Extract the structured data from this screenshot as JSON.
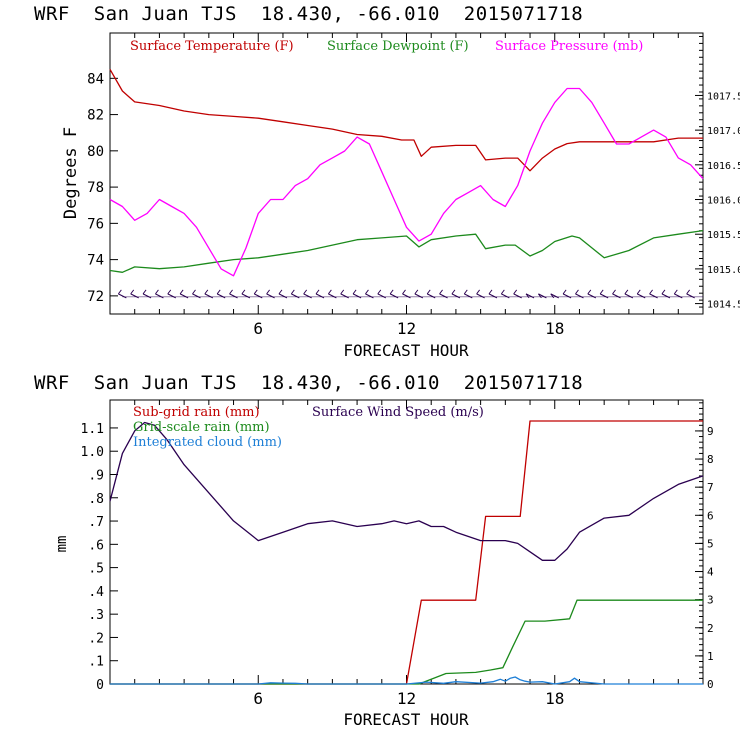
{
  "charts": [
    {
      "title": "WRF  San Juan TJS  18.430, -66.010  2015071718",
      "xlabel": "FORECAST HOUR",
      "ylabel": "Degrees F",
      "legend": [
        {
          "label": "Surface Temperature (F)",
          "color": "#c00000"
        },
        {
          "label": "Surface Dewpoint (F)",
          "color": "#1c8a1c"
        },
        {
          "label": "Surface Pressure (mb)",
          "color": "#ff00ff"
        }
      ]
    },
    {
      "title": "WRF  San Juan TJS  18.430, -66.010  2015071718",
      "xlabel": "FORECAST HOUR",
      "ylabel": "mm",
      "legend": [
        {
          "label": "Sub-grid rain (mm)",
          "color": "#c00000"
        },
        {
          "label": "Surface Wind Speed (m/s)",
          "color": "#2a0050"
        },
        {
          "label": "Grid-scale rain (mm)",
          "color": "#1c8a1c"
        },
        {
          "label": "Integrated cloud (mm)",
          "color": "#1e7fd6"
        }
      ]
    }
  ],
  "chart_data": [
    {
      "type": "line",
      "xlim": [
        0,
        24
      ],
      "ylim": [
        71,
        86.5
      ],
      "y2lim": [
        1014.35,
        1018.4
      ],
      "xticks": [
        "6",
        "12",
        "18"
      ],
      "xtick_values": [
        6,
        12,
        18
      ],
      "yticks": [
        "72",
        "74",
        "76",
        "78",
        "80",
        "82",
        "84"
      ],
      "ytick_values": [
        72,
        74,
        76,
        78,
        80,
        82,
        84
      ],
      "y2ticks": [
        "1014.5",
        "1015.0",
        "1015.5",
        "1016.0",
        "1016.5",
        "1017.0",
        "1017.5"
      ],
      "y2tick_values": [
        1014.5,
        1015.0,
        1015.5,
        1016.0,
        1016.5,
        1017.0,
        1017.5
      ],
      "series": [
        {
          "name": "Surface Temperature (F)",
          "axis": "left",
          "color": "#c00000",
          "x": [
            0,
            0.5,
            1,
            2,
            3,
            4,
            5,
            6,
            7,
            8,
            9,
            10,
            11,
            11.8,
            12.3,
            12.6,
            13,
            14,
            14.8,
            15.2,
            16,
            16.5,
            17,
            17.5,
            18,
            18.5,
            19,
            20,
            21,
            22,
            23,
            24
          ],
          "y": [
            84.5,
            83.3,
            82.7,
            82.5,
            82.2,
            82.0,
            81.9,
            81.8,
            81.6,
            81.4,
            81.2,
            80.9,
            80.8,
            80.6,
            80.6,
            79.7,
            80.2,
            80.3,
            80.3,
            79.5,
            79.6,
            79.6,
            78.9,
            79.6,
            80.1,
            80.4,
            80.5,
            80.5,
            80.5,
            80.5,
            80.7,
            80.7
          ]
        },
        {
          "name": "Surface Dewpoint (F)",
          "axis": "left",
          "color": "#1c8a1c",
          "x": [
            0,
            0.5,
            1,
            2,
            3,
            4,
            5,
            6,
            7,
            8,
            9,
            10,
            11,
            12,
            12.5,
            13,
            14,
            14.8,
            15.2,
            16,
            16.4,
            17,
            17.5,
            18,
            18.7,
            19,
            20,
            21,
            22,
            23,
            24
          ],
          "y": [
            73.4,
            73.3,
            73.6,
            73.5,
            73.6,
            73.8,
            74.0,
            74.1,
            74.3,
            74.5,
            74.8,
            75.1,
            75.2,
            75.3,
            74.7,
            75.1,
            75.3,
            75.4,
            74.6,
            74.8,
            74.8,
            74.2,
            74.5,
            75.0,
            75.3,
            75.2,
            74.1,
            74.5,
            75.2,
            75.4,
            75.6
          ]
        },
        {
          "name": "Surface Pressure (mb)",
          "axis": "right",
          "color": "#ff00ff",
          "x": [
            0,
            0.5,
            1,
            1.5,
            2,
            2.5,
            3,
            3.5,
            4,
            4.5,
            5,
            5.5,
            6,
            6.5,
            7,
            7.5,
            8,
            8.5,
            9,
            9.5,
            10,
            10.5,
            11,
            11.5,
            12,
            12.5,
            13,
            13.5,
            14,
            14.5,
            15,
            15.5,
            16,
            16.5,
            17,
            17.5,
            18,
            18.5,
            19,
            19.5,
            20,
            20.5,
            21,
            21.5,
            22,
            22.5,
            23,
            23.5,
            24
          ],
          "y": [
            1016.0,
            1015.9,
            1015.7,
            1015.8,
            1016.0,
            1015.9,
            1015.8,
            1015.6,
            1015.3,
            1015.0,
            1014.9,
            1015.3,
            1015.8,
            1016.0,
            1016.0,
            1016.2,
            1016.3,
            1016.5,
            1016.6,
            1016.7,
            1016.9,
            1016.8,
            1016.4,
            1016.0,
            1015.6,
            1015.4,
            1015.5,
            1015.8,
            1016.0,
            1016.1,
            1016.2,
            1016.0,
            1015.9,
            1016.2,
            1016.7,
            1017.1,
            1017.4,
            1017.6,
            1017.6,
            1017.4,
            1017.1,
            1016.8,
            1016.8,
            1016.9,
            1017.0,
            1016.9,
            1016.6,
            1016.5,
            1016.3
          ]
        }
      ]
    },
    {
      "type": "line",
      "xlim": [
        0,
        24
      ],
      "ylim": [
        0,
        1.22
      ],
      "y2lim": [
        0,
        10.1
      ],
      "xticks": [
        "6",
        "12",
        "18"
      ],
      "xtick_values": [
        6,
        12,
        18
      ],
      "yticks": [
        "0",
        ".1",
        ".2",
        ".3",
        ".4",
        ".5",
        ".6",
        ".7",
        ".8",
        ".9",
        "1.0",
        "1.1"
      ],
      "ytick_values": [
        0,
        0.1,
        0.2,
        0.3,
        0.4,
        0.5,
        0.6,
        0.7,
        0.8,
        0.9,
        1.0,
        1.1
      ],
      "y2ticks": [
        "0",
        "1",
        "2",
        "3",
        "4",
        "5",
        "6",
        "7",
        "8",
        "9"
      ],
      "y2tick_values": [
        0,
        1,
        2,
        3,
        4,
        5,
        6,
        7,
        8,
        9
      ],
      "series": [
        {
          "name": "Sub-grid rain (mm)",
          "axis": "left",
          "color": "#c00000",
          "x": [
            0,
            12,
            12.6,
            14.8,
            15.2,
            16.6,
            17.0,
            24
          ],
          "y": [
            0,
            0,
            0.36,
            0.36,
            0.72,
            0.72,
            1.13,
            1.13
          ]
        },
        {
          "name": "Surface Wind Speed (m/s)",
          "axis": "right",
          "color": "#2a0050",
          "x": [
            0,
            0.5,
            1,
            1.4,
            1.8,
            2.3,
            3,
            4,
            5,
            6,
            7,
            8,
            9,
            10,
            11,
            11.5,
            12,
            12.5,
            13,
            13.5,
            14,
            15,
            16,
            16.5,
            17,
            17.5,
            18,
            18.5,
            19,
            20,
            21,
            22,
            23,
            24
          ],
          "y": [
            6.5,
            8.2,
            9.0,
            9.3,
            9.2,
            8.7,
            7.8,
            6.8,
            5.8,
            5.1,
            5.4,
            5.7,
            5.8,
            5.6,
            5.7,
            5.8,
            5.7,
            5.8,
            5.6,
            5.6,
            5.4,
            5.1,
            5.1,
            5.0,
            4.7,
            4.4,
            4.4,
            4.8,
            5.4,
            5.9,
            6.0,
            6.6,
            7.1,
            7.4
          ]
        },
        {
          "name": "Grid-scale rain (mm)",
          "axis": "left",
          "color": "#1c8a1c",
          "x": [
            0,
            12.5,
            13.6,
            14.8,
            15.4,
            15.9,
            16.3,
            16.8,
            17.6,
            18.6,
            18.9,
            24
          ],
          "y": [
            0,
            0,
            0.045,
            0.05,
            0.06,
            0.07,
            0.16,
            0.27,
            0.27,
            0.28,
            0.36,
            0.36
          ]
        },
        {
          "name": "Integrated cloud (mm)",
          "axis": "left",
          "color": "#1e7fd6",
          "x": [
            0,
            6,
            6.5,
            7,
            7.5,
            8,
            12,
            12.8,
            13.5,
            14,
            15,
            15.5,
            15.8,
            16,
            16.2,
            16.4,
            16.6,
            16.8,
            17,
            17.5,
            18,
            18.6,
            18.8,
            19,
            20,
            24
          ],
          "y": [
            0,
            0,
            0.005,
            0.004,
            0.003,
            0,
            0,
            0.008,
            0.003,
            0.01,
            0.004,
            0.01,
            0.02,
            0.012,
            0.025,
            0.03,
            0.018,
            0.012,
            0.008,
            0.01,
            0,
            0.01,
            0.025,
            0.01,
            0,
            0
          ]
        }
      ]
    }
  ]
}
